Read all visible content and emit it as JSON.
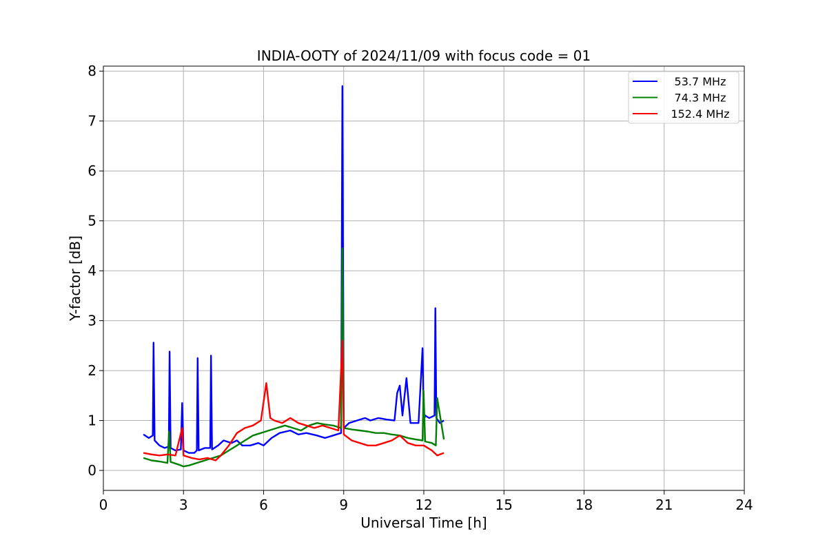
{
  "chart_data": {
    "type": "line",
    "title": "INDIA-OOTY of 2024/11/09 with focus code = 01",
    "xlabel": "Universal Time [h]",
    "ylabel": "Y-factor [dB]",
    "xlim": [
      0,
      24
    ],
    "ylim": [
      -0.4,
      8.1
    ],
    "xticks": [
      0,
      3,
      6,
      9,
      12,
      15,
      18,
      21,
      24
    ],
    "yticks": [
      0,
      1,
      2,
      3,
      4,
      5,
      6,
      7,
      8
    ],
    "grid": true,
    "legend_position": "top-right",
    "series": [
      {
        "name": "53.7 MHz",
        "color": "#0000ff",
        "x": [
          1.5,
          1.7,
          1.85,
          1.88,
          1.92,
          2.1,
          2.3,
          2.45,
          2.48,
          2.52,
          2.7,
          2.9,
          2.95,
          3.0,
          3.2,
          3.4,
          3.5,
          3.53,
          3.57,
          3.8,
          4.0,
          4.03,
          4.07,
          4.3,
          4.5,
          4.8,
          5.0,
          5.2,
          5.5,
          5.8,
          6.0,
          6.3,
          6.6,
          7.0,
          7.3,
          7.6,
          8.0,
          8.3,
          8.6,
          8.9,
          8.95,
          9.0,
          9.2,
          9.5,
          9.8,
          10.0,
          10.3,
          10.6,
          10.9,
          11.0,
          11.1,
          11.2,
          11.35,
          11.5,
          11.8,
          11.95,
          12.0,
          12.05,
          12.2,
          12.4,
          12.43,
          12.47,
          12.6,
          12.75
        ],
        "y": [
          0.72,
          0.65,
          0.7,
          2.56,
          0.6,
          0.5,
          0.45,
          0.48,
          2.38,
          0.45,
          0.4,
          0.42,
          1.35,
          0.4,
          0.35,
          0.35,
          0.4,
          2.25,
          0.4,
          0.45,
          0.45,
          2.3,
          0.42,
          0.5,
          0.6,
          0.55,
          0.6,
          0.5,
          0.5,
          0.55,
          0.5,
          0.65,
          0.75,
          0.8,
          0.72,
          0.75,
          0.7,
          0.65,
          0.7,
          0.75,
          7.7,
          0.85,
          0.95,
          1.0,
          1.05,
          1.0,
          1.05,
          1.02,
          1.0,
          1.55,
          1.7,
          1.1,
          1.85,
          0.95,
          0.95,
          2.45,
          1.0,
          1.1,
          1.05,
          1.1,
          3.25,
          1.05,
          0.95,
          1.0
        ]
      },
      {
        "name": "74.3 MHz",
        "color": "#008000",
        "x": [
          1.5,
          1.8,
          2.1,
          2.4,
          2.46,
          2.52,
          2.8,
          3.0,
          3.2,
          3.5,
          3.8,
          4.1,
          4.4,
          4.7,
          5.0,
          5.3,
          5.6,
          5.9,
          6.2,
          6.5,
          6.8,
          7.1,
          7.4,
          7.7,
          8.0,
          8.3,
          8.6,
          8.9,
          8.95,
          9.0,
          9.3,
          9.6,
          9.9,
          10.2,
          10.5,
          10.8,
          11.1,
          11.4,
          11.7,
          11.95,
          11.99,
          12.05,
          12.3,
          12.45,
          12.5,
          12.75
        ],
        "y": [
          0.25,
          0.2,
          0.18,
          0.15,
          0.78,
          0.17,
          0.12,
          0.08,
          0.1,
          0.15,
          0.2,
          0.25,
          0.3,
          0.4,
          0.5,
          0.6,
          0.7,
          0.75,
          0.8,
          0.85,
          0.9,
          0.85,
          0.8,
          0.9,
          0.95,
          0.92,
          0.9,
          0.85,
          4.45,
          0.85,
          0.82,
          0.8,
          0.78,
          0.75,
          0.75,
          0.72,
          0.7,
          0.65,
          0.62,
          0.6,
          1.6,
          0.58,
          0.55,
          0.5,
          1.45,
          0.62
        ]
      },
      {
        "name": "152.4 MHz",
        "color": "#ff0000",
        "x": [
          1.5,
          1.8,
          2.1,
          2.4,
          2.7,
          2.95,
          3.0,
          3.3,
          3.6,
          3.9,
          4.2,
          4.4,
          4.7,
          5.0,
          5.3,
          5.6,
          5.9,
          6.1,
          6.25,
          6.4,
          6.7,
          7.0,
          7.3,
          7.6,
          7.9,
          8.2,
          8.5,
          8.8,
          8.95,
          9.0,
          9.3,
          9.6,
          9.9,
          10.2,
          10.5,
          10.8,
          11.1,
          11.4,
          11.7,
          12.0,
          12.3,
          12.5,
          12.75
        ],
        "y": [
          0.35,
          0.32,
          0.3,
          0.32,
          0.3,
          0.85,
          0.3,
          0.25,
          0.22,
          0.25,
          0.2,
          0.3,
          0.5,
          0.75,
          0.85,
          0.9,
          1.0,
          1.75,
          1.05,
          1.0,
          0.95,
          1.05,
          0.95,
          0.9,
          0.85,
          0.9,
          0.85,
          0.8,
          2.6,
          0.72,
          0.6,
          0.55,
          0.5,
          0.5,
          0.55,
          0.6,
          0.7,
          0.55,
          0.5,
          0.5,
          0.4,
          0.3,
          0.35
        ]
      }
    ]
  }
}
